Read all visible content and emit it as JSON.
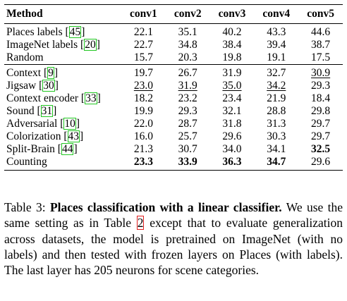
{
  "table": {
    "headers": [
      "Method",
      "conv1",
      "conv2",
      "conv3",
      "conv4",
      "conv5"
    ],
    "groups": [
      [
        {
          "name": "Places labels",
          "cite": "45",
          "cells": [
            {
              "v": "22.1"
            },
            {
              "v": "35.1"
            },
            {
              "v": "40.2"
            },
            {
              "v": "43.3"
            },
            {
              "v": "44.6"
            }
          ]
        },
        {
          "name": "ImageNet labels",
          "cite": "20",
          "cells": [
            {
              "v": "22.7"
            },
            {
              "v": "34.8"
            },
            {
              "v": "38.4"
            },
            {
              "v": "39.4"
            },
            {
              "v": "38.7"
            }
          ]
        },
        {
          "name": "Random",
          "cite": "",
          "cells": [
            {
              "v": "15.7"
            },
            {
              "v": "20.3"
            },
            {
              "v": "19.8"
            },
            {
              "v": "19.1"
            },
            {
              "v": "17.5"
            }
          ]
        }
      ],
      [
        {
          "name": "Context",
          "cite": "9",
          "cells": [
            {
              "v": "19.7"
            },
            {
              "v": "26.7"
            },
            {
              "v": "31.9"
            },
            {
              "v": "32.7"
            },
            {
              "v": "30.9",
              "u": true
            }
          ]
        },
        {
          "name": "Jigsaw",
          "cite": "30",
          "cells": [
            {
              "v": "23.0",
              "u": true
            },
            {
              "v": "31.9",
              "u": true
            },
            {
              "v": "35.0",
              "u": true
            },
            {
              "v": "34.2",
              "u": true
            },
            {
              "v": "29.3"
            }
          ]
        },
        {
          "name": "Context encoder",
          "cite": "33",
          "cells": [
            {
              "v": "18.2"
            },
            {
              "v": "23.2"
            },
            {
              "v": "23.4"
            },
            {
              "v": "21.9"
            },
            {
              "v": "18.4"
            }
          ]
        },
        {
          "name": "Sound",
          "cite": "31",
          "cells": [
            {
              "v": "19.9"
            },
            {
              "v": "29.3"
            },
            {
              "v": "32.1"
            },
            {
              "v": "28.8"
            },
            {
              "v": "29.8"
            }
          ]
        },
        {
          "name": "Adversarial",
          "cite": "10",
          "cells": [
            {
              "v": "22.0"
            },
            {
              "v": "28.7"
            },
            {
              "v": "31.8"
            },
            {
              "v": "31.3"
            },
            {
              "v": "29.7"
            }
          ]
        },
        {
          "name": "Colorization",
          "cite": "43",
          "cells": [
            {
              "v": "16.0"
            },
            {
              "v": "25.7"
            },
            {
              "v": "29.6"
            },
            {
              "v": "30.3"
            },
            {
              "v": "29.7"
            }
          ]
        },
        {
          "name": "Split-Brain",
          "cite": "44",
          "cells": [
            {
              "v": "21.3"
            },
            {
              "v": "30.7"
            },
            {
              "v": "34.0"
            },
            {
              "v": "34.1"
            },
            {
              "v": "32.5",
              "b": true
            }
          ]
        },
        {
          "name": "Counting",
          "cite": "",
          "cells": [
            {
              "v": "23.3",
              "b": true
            },
            {
              "v": "33.9",
              "b": true
            },
            {
              "v": "36.3",
              "b": true
            },
            {
              "v": "34.7",
              "b": true
            },
            {
              "v": "29.6"
            }
          ]
        }
      ]
    ]
  },
  "caption": {
    "label": "Table 3: ",
    "bold": "Places classification with a linear classifier.",
    "text1": " We use the same setting as in Table ",
    "ref": "2",
    "text2": " except that to evaluate generalization across datasets, the model is pretrained on ImageNet (with no labels) and then tested with frozen layers on Places (with labels). The last layer has 205 neurons for scene categories."
  }
}
